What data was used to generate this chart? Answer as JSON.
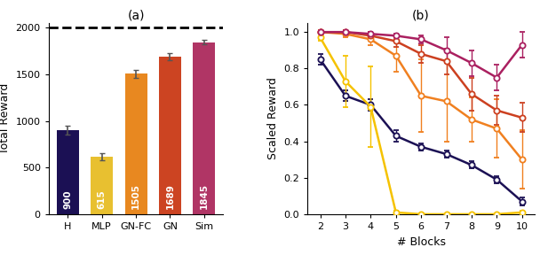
{
  "bar_categories": [
    "H",
    "MLP",
    "GN-FC",
    "GN",
    "Sim"
  ],
  "bar_values": [
    900,
    615,
    1505,
    1689,
    1845
  ],
  "bar_errors": [
    50,
    35,
    40,
    35,
    20
  ],
  "bar_colors": [
    "#1b1054",
    "#e8c030",
    "#e88820",
    "#cc4422",
    "#b03565"
  ],
  "dashed_line": 2000,
  "ylabel_left": "Total Reward",
  "title_left": "(a)",
  "title_right": "(b)",
  "ylabel_right": "Scaled Reward",
  "xlabel_right": "# Blocks",
  "ylim_left": [
    0,
    2050
  ],
  "ylim_right": [
    0.0,
    1.05
  ],
  "line_x": [
    2,
    3,
    4,
    5,
    6,
    7,
    8,
    9,
    10
  ],
  "lines": {
    "H": {
      "color": "#1b1054",
      "y": [
        0.85,
        0.65,
        0.6,
        0.43,
        0.37,
        0.33,
        0.27,
        0.19,
        0.07
      ],
      "yerr": [
        0.03,
        0.03,
        0.03,
        0.03,
        0.02,
        0.02,
        0.02,
        0.02,
        0.02
      ]
    },
    "MLP": {
      "color": "#f5c200",
      "y": [
        0.97,
        0.73,
        0.59,
        0.01,
        0.0,
        0.0,
        0.0,
        0.0,
        0.01
      ],
      "yerr": [
        0.02,
        0.14,
        0.22,
        0.01,
        0.0,
        0.0,
        0.0,
        0.0,
        0.01
      ]
    },
    "GN-FC": {
      "color": "#f08020",
      "y": [
        1.0,
        0.99,
        0.96,
        0.87,
        0.65,
        0.62,
        0.52,
        0.47,
        0.3
      ],
      "yerr": [
        0.01,
        0.02,
        0.03,
        0.09,
        0.2,
        0.22,
        0.12,
        0.16,
        0.16
      ]
    },
    "GN": {
      "color": "#cc4020",
      "y": [
        1.0,
        1.0,
        0.98,
        0.95,
        0.88,
        0.84,
        0.66,
        0.57,
        0.53
      ],
      "yerr": [
        0.01,
        0.01,
        0.02,
        0.03,
        0.05,
        0.07,
        0.09,
        0.08,
        0.08
      ]
    },
    "Sim": {
      "color": "#aa2060",
      "y": [
        1.0,
        1.0,
        0.99,
        0.98,
        0.96,
        0.9,
        0.83,
        0.75,
        0.93
      ],
      "yerr": [
        0.005,
        0.005,
        0.01,
        0.01,
        0.02,
        0.07,
        0.07,
        0.07,
        0.07
      ]
    }
  }
}
